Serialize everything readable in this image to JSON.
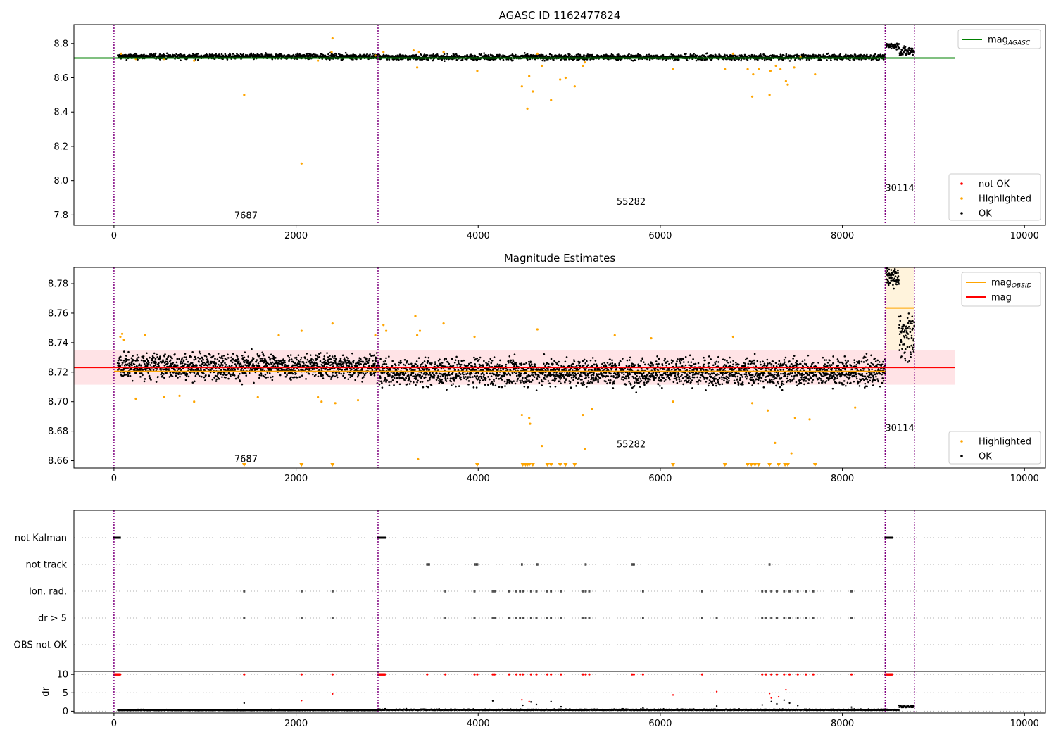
{
  "colors": {
    "ok": "#000000",
    "highlighted": "#ffa500",
    "not_ok": "#ff0000",
    "mag_agasc": "#008000",
    "mag_obsid": "#ffa500",
    "mag": "#ff0000",
    "obsid_line": "#800080",
    "mag_band": "#ffc0c8",
    "obsid_band": "#fff3dc",
    "grid": "#b0b0b0"
  },
  "chart_data": [
    {
      "id": "agasc",
      "type": "scatter",
      "title": "AGASC ID 1162477824",
      "xlim": [
        -440,
        10230
      ],
      "ylim": [
        7.74,
        8.91
      ],
      "xticks": [
        0,
        2000,
        4000,
        6000,
        8000,
        10000
      ],
      "xtick_labels": [
        "0",
        "2000",
        "4000",
        "6000",
        "8000",
        "10000"
      ],
      "yticks": [
        7.8,
        8.0,
        8.2,
        8.4,
        8.6,
        8.8
      ],
      "ytick_labels": [
        "7.8",
        "8.0",
        "8.2",
        "8.4",
        "8.6",
        "8.8"
      ],
      "obsid_boundaries": [
        0,
        2900,
        8470,
        8790
      ],
      "obsid_labels": [
        {
          "text": "7687",
          "x": 1450,
          "y": 7.78
        },
        {
          "text": "55282",
          "x": 5680,
          "y": 7.86
        },
        {
          "text": "30114",
          "x": 8630,
          "y": 7.94
        }
      ],
      "ok_segments": [
        {
          "x0": 40,
          "x1": 2900,
          "center": 8.724,
          "spread": 0.015
        },
        {
          "x0": 2910,
          "x1": 8470,
          "center": 8.72,
          "spread": 0.016
        },
        {
          "x0": 8480,
          "x1": 8620,
          "center": 8.79,
          "spread": 0.02
        },
        {
          "x0": 8620,
          "x1": 8790,
          "center": 8.755,
          "spread": 0.03
        }
      ],
      "highlighted_points": [
        {
          "x": 80,
          "y": 8.74
        },
        {
          "x": 240,
          "y": 8.71
        },
        {
          "x": 550,
          "y": 8.71
        },
        {
          "x": 880,
          "y": 8.7
        },
        {
          "x": 1430,
          "y": 8.5
        },
        {
          "x": 2060,
          "y": 8.1
        },
        {
          "x": 2240,
          "y": 8.7
        },
        {
          "x": 2400,
          "y": 8.83
        },
        {
          "x": 2390,
          "y": 8.75
        },
        {
          "x": 2870,
          "y": 8.73
        },
        {
          "x": 2960,
          "y": 8.75
        },
        {
          "x": 3290,
          "y": 8.76
        },
        {
          "x": 3330,
          "y": 8.66
        },
        {
          "x": 3350,
          "y": 8.75
        },
        {
          "x": 3620,
          "y": 8.75
        },
        {
          "x": 3990,
          "y": 8.64
        },
        {
          "x": 4480,
          "y": 8.55
        },
        {
          "x": 4540,
          "y": 8.42
        },
        {
          "x": 4560,
          "y": 8.61
        },
        {
          "x": 4600,
          "y": 8.52
        },
        {
          "x": 4650,
          "y": 8.74
        },
        {
          "x": 4700,
          "y": 8.67
        },
        {
          "x": 4800,
          "y": 8.47
        },
        {
          "x": 4900,
          "y": 8.59
        },
        {
          "x": 4960,
          "y": 8.6
        },
        {
          "x": 5060,
          "y": 8.55
        },
        {
          "x": 5150,
          "y": 8.67
        },
        {
          "x": 5170,
          "y": 8.69
        },
        {
          "x": 6140,
          "y": 8.65
        },
        {
          "x": 6710,
          "y": 8.65
        },
        {
          "x": 6800,
          "y": 8.74
        },
        {
          "x": 6960,
          "y": 8.65
        },
        {
          "x": 7010,
          "y": 8.49
        },
        {
          "x": 7020,
          "y": 8.62
        },
        {
          "x": 7080,
          "y": 8.65
        },
        {
          "x": 7200,
          "y": 8.5
        },
        {
          "x": 7210,
          "y": 8.64
        },
        {
          "x": 7270,
          "y": 8.67
        },
        {
          "x": 7320,
          "y": 8.65
        },
        {
          "x": 7380,
          "y": 8.58
        },
        {
          "x": 7400,
          "y": 8.56
        },
        {
          "x": 7470,
          "y": 8.66
        },
        {
          "x": 7540,
          "y": 8.72
        },
        {
          "x": 7700,
          "y": 8.62
        }
      ],
      "hlines": [
        {
          "series": "mag_agasc",
          "y": 8.715,
          "x0": -440,
          "x1": 9240
        }
      ],
      "legends": [
        {
          "position": "top-right",
          "entries": [
            {
              "label": "mag",
              "sub": "AGASC",
              "marker": "line",
              "color": "mag_agasc"
            }
          ]
        },
        {
          "position": "lower-right",
          "entries": [
            {
              "label": "not OK",
              "marker": "dot",
              "color": "not_ok"
            },
            {
              "label": "Highlighted",
              "marker": "dot",
              "color": "highlighted"
            },
            {
              "label": "OK",
              "marker": "dot",
              "color": "ok"
            }
          ]
        }
      ]
    },
    {
      "id": "estimates",
      "type": "scatter",
      "title": "Magnitude Estimates",
      "xlim": [
        -440,
        10230
      ],
      "ylim": [
        8.655,
        8.791
      ],
      "xticks": [
        0,
        2000,
        4000,
        6000,
        8000,
        10000
      ],
      "xtick_labels": [
        "0",
        "2000",
        "4000",
        "6000",
        "8000",
        "10000"
      ],
      "yticks": [
        8.66,
        8.68,
        8.7,
        8.72,
        8.74,
        8.76,
        8.78
      ],
      "ytick_labels": [
        "8.66",
        "8.68",
        "8.70",
        "8.72",
        "8.74",
        "8.76",
        "8.78"
      ],
      "obsid_boundaries": [
        0,
        2900,
        8470,
        8790
      ],
      "obsid_labels": [
        {
          "text": "7687",
          "x": 1450,
          "y": 8.659
        },
        {
          "text": "55282",
          "x": 5680,
          "y": 8.669
        },
        {
          "text": "30114",
          "x": 8630,
          "y": 8.68
        }
      ],
      "mag_band": {
        "y0": 8.7115,
        "y1": 8.735,
        "x0": -440,
        "x1": 9240
      },
      "obsid_band": {
        "y0": 8.735,
        "y1": 8.791,
        "x0": 8470,
        "x1": 8790
      },
      "ok_segments": [
        {
          "x0": 40,
          "x1": 2900,
          "center": 8.724,
          "spread": 0.0085
        },
        {
          "x0": 2910,
          "x1": 8470,
          "center": 8.72,
          "spread": 0.009
        },
        {
          "x0": 8480,
          "x1": 8620,
          "center": 8.785,
          "spread": 0.006
        },
        {
          "x0": 8620,
          "x1": 8790,
          "center": 8.745,
          "spread": 0.016
        }
      ],
      "highlighted_points": [
        {
          "x": 70,
          "y": 8.744
        },
        {
          "x": 90,
          "y": 8.746
        },
        {
          "x": 110,
          "y": 8.742
        },
        {
          "x": 240,
          "y": 8.702
        },
        {
          "x": 340,
          "y": 8.745
        },
        {
          "x": 550,
          "y": 8.703
        },
        {
          "x": 720,
          "y": 8.704
        },
        {
          "x": 880,
          "y": 8.7
        },
        {
          "x": 1580,
          "y": 8.703
        },
        {
          "x": 1810,
          "y": 8.745
        },
        {
          "x": 2060,
          "y": 8.748
        },
        {
          "x": 2240,
          "y": 8.703
        },
        {
          "x": 2280,
          "y": 8.7
        },
        {
          "x": 2400,
          "y": 8.753
        },
        {
          "x": 2430,
          "y": 8.699
        },
        {
          "x": 2680,
          "y": 8.701
        },
        {
          "x": 2870,
          "y": 8.745
        },
        {
          "x": 2960,
          "y": 8.752
        },
        {
          "x": 2990,
          "y": 8.748
        },
        {
          "x": 3310,
          "y": 8.758
        },
        {
          "x": 3330,
          "y": 8.745
        },
        {
          "x": 3340,
          "y": 8.661
        },
        {
          "x": 3360,
          "y": 8.748
        },
        {
          "x": 3620,
          "y": 8.753
        },
        {
          "x": 3960,
          "y": 8.744
        },
        {
          "x": 4480,
          "y": 8.691
        },
        {
          "x": 4560,
          "y": 8.689
        },
        {
          "x": 4570,
          "y": 8.685
        },
        {
          "x": 4650,
          "y": 8.749
        },
        {
          "x": 4700,
          "y": 8.67
        },
        {
          "x": 5150,
          "y": 8.691
        },
        {
          "x": 5170,
          "y": 8.668
        },
        {
          "x": 5250,
          "y": 8.695
        },
        {
          "x": 5500,
          "y": 8.745
        },
        {
          "x": 5900,
          "y": 8.743
        },
        {
          "x": 6140,
          "y": 8.7
        },
        {
          "x": 6800,
          "y": 8.744
        },
        {
          "x": 7010,
          "y": 8.699
        },
        {
          "x": 7180,
          "y": 8.694
        },
        {
          "x": 7260,
          "y": 8.672
        },
        {
          "x": 7440,
          "y": 8.665
        },
        {
          "x": 7480,
          "y": 8.689
        },
        {
          "x": 7640,
          "y": 8.688
        },
        {
          "x": 8140,
          "y": 8.696
        }
      ],
      "clipped_markers_x": [
        1430,
        2060,
        2400,
        3990,
        4490,
        4520,
        4540,
        4560,
        4600,
        4760,
        4800,
        4900,
        4960,
        5060,
        6140,
        6710,
        6960,
        7000,
        7040,
        7080,
        7200,
        7300,
        7370,
        7400,
        7700
      ],
      "hlines": [
        {
          "series": "mag_obsid",
          "y": 8.7205,
          "x0": 0,
          "x1": 8470
        },
        {
          "series": "mag_obsid",
          "y": 8.7635,
          "x0": 8470,
          "x1": 8790
        },
        {
          "series": "mag",
          "y": 8.7232,
          "x0": -440,
          "x1": 9240
        }
      ],
      "legends": [
        {
          "position": "top-right",
          "entries": [
            {
              "label": "mag",
              "sub": "OBSID",
              "marker": "line",
              "color": "mag_obsid"
            },
            {
              "label": "mag",
              "marker": "line",
              "color": "mag"
            }
          ]
        },
        {
          "position": "lower-right",
          "entries": [
            {
              "label": "Highlighted",
              "marker": "dot",
              "color": "highlighted"
            },
            {
              "label": "OK",
              "marker": "dot",
              "color": "ok"
            }
          ]
        }
      ]
    },
    {
      "id": "flags",
      "type": "scatter",
      "xlim": [
        -440,
        10230
      ],
      "rows": [
        "not Kalman",
        "not track",
        "Ion. rad.",
        "dr > 5",
        "OBS not OK"
      ],
      "row_points": [
        {
          "row": "not Kalman",
          "ranges": [
            [
              0,
              70
            ],
            [
              2900,
              2980
            ],
            [
              8470,
              8550
            ]
          ]
        },
        {
          "row": "not track",
          "x": [
            3440,
            3460,
            3970,
            3990,
            4480,
            4650,
            5180,
            5690,
            5710,
            7200
          ]
        },
        {
          "row": "Ion. rad.",
          "x": [
            1430,
            2060,
            2400,
            3640,
            3960,
            4160,
            4180,
            4340,
            4420,
            4460,
            4490,
            4580,
            4640,
            4760,
            4800,
            4910,
            5150,
            5180,
            5220,
            5810,
            6460,
            7120,
            7160,
            7220,
            7280,
            7360,
            7420,
            7510,
            7600,
            7680,
            8100
          ]
        },
        {
          "row": "dr > 5",
          "x": [
            1430,
            2060,
            2400,
            3640,
            3960,
            4160,
            4180,
            4340,
            4420,
            4460,
            4490,
            4580,
            4640,
            4760,
            4800,
            4910,
            5150,
            5180,
            5220,
            5810,
            6460,
            6620,
            7120,
            7160,
            7220,
            7280,
            7360,
            7420,
            7510,
            7600,
            7680,
            8100
          ]
        },
        {
          "row": "OBS not OK",
          "x": []
        }
      ]
    },
    {
      "id": "dr",
      "type": "scatter",
      "ylabel": "dr",
      "xlim": [
        -440,
        10230
      ],
      "ylim": [
        -0.5,
        10.8
      ],
      "xticks": [
        0,
        2000,
        4000,
        6000,
        8000,
        10000
      ],
      "xtick_labels": [
        "0",
        "2000",
        "4000",
        "6000",
        "8000",
        "10000"
      ],
      "yticks": [
        0,
        5,
        10
      ],
      "ytick_labels": [
        "0",
        "5",
        "10"
      ],
      "ok_segments": [
        {
          "x0": 40,
          "x1": 2900,
          "center": 0.2,
          "spread": 0.2
        },
        {
          "x0": 2910,
          "x1": 8470,
          "center": 0.25,
          "spread": 0.25
        },
        {
          "x0": 8480,
          "x1": 8620,
          "center": 0.25,
          "spread": 0.2
        },
        {
          "x0": 8620,
          "x1": 8790,
          "center": 1.0,
          "spread": 0.5
        }
      ],
      "ok_outliers": [
        {
          "x": 1430,
          "y": 2.2
        },
        {
          "x": 4160,
          "y": 2.8
        },
        {
          "x": 4490,
          "y": 1.6
        },
        {
          "x": 4580,
          "y": 2.5
        },
        {
          "x": 4640,
          "y": 1.8
        },
        {
          "x": 4800,
          "y": 2.6
        },
        {
          "x": 4910,
          "y": 1.2
        },
        {
          "x": 5810,
          "y": 0.9
        },
        {
          "x": 6620,
          "y": 1.4
        },
        {
          "x": 7120,
          "y": 1.7
        },
        {
          "x": 7220,
          "y": 2.6
        },
        {
          "x": 7280,
          "y": 2.0
        },
        {
          "x": 7360,
          "y": 3.0
        },
        {
          "x": 7420,
          "y": 2.2
        },
        {
          "x": 7510,
          "y": 1.5
        },
        {
          "x": 8100,
          "y": 1.1
        }
      ],
      "not_ok_x": [
        1430,
        2060,
        2400,
        3440,
        3640,
        3960,
        3990,
        4160,
        4180,
        4340,
        4420,
        4460,
        4490,
        4580,
        4640,
        4760,
        4800,
        4910,
        5150,
        5180,
        5220,
        5690,
        5710,
        5810,
        6460,
        7120,
        7160,
        7220,
        7280,
        7360,
        7420,
        7510,
        7600,
        7680,
        8100
      ],
      "not_ok_clusters": [
        [
          0,
          70
        ],
        [
          2900,
          2980
        ],
        [
          8470,
          8550
        ]
      ],
      "not_ok_inrange": [
        {
          "x": 2060,
          "y": 2.9
        },
        {
          "x": 2400,
          "y": 4.7
        },
        {
          "x": 4480,
          "y": 3.1
        },
        {
          "x": 4560,
          "y": 2.6
        },
        {
          "x": 6140,
          "y": 4.4
        },
        {
          "x": 6620,
          "y": 5.3
        },
        {
          "x": 7200,
          "y": 4.8
        },
        {
          "x": 7220,
          "y": 3.6
        },
        {
          "x": 7300,
          "y": 3.9
        },
        {
          "x": 7380,
          "y": 5.8
        }
      ],
      "obsid_boundaries": [
        0,
        2900,
        8470,
        8790
      ]
    }
  ]
}
